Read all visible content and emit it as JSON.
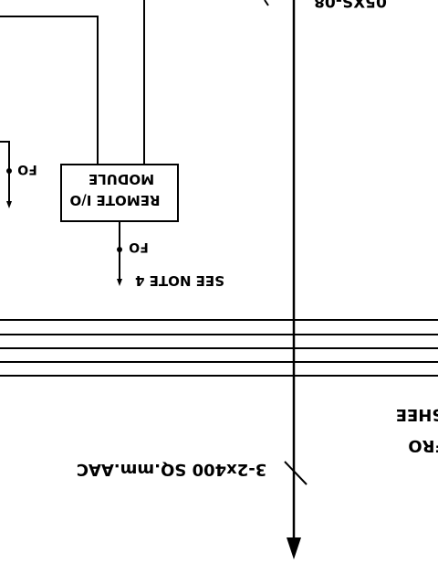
{
  "drawing": {
    "labels": {
      "top_tag": "05XS-08",
      "fo_left": "FO",
      "module_line1": "MODULE",
      "module_line2": "REMOTE I/O",
      "fo_module": "FO",
      "see_note": "SEE NOTE 4",
      "cable": "3-2x400 SQ.mm.AAC",
      "sheet": "SHEE",
      "from": "FRO"
    }
  }
}
